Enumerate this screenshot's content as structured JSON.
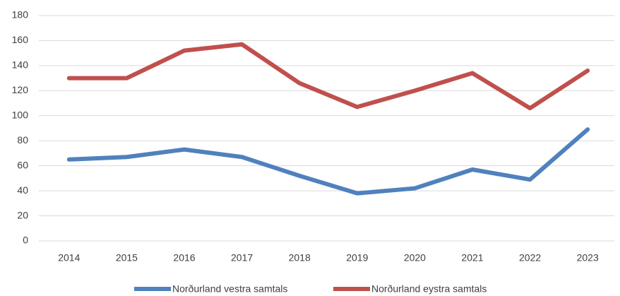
{
  "chart_data": {
    "type": "line",
    "categories": [
      "2014",
      "2015",
      "2016",
      "2017",
      "2018",
      "2019",
      "2020",
      "2021",
      "2022",
      "2023"
    ],
    "series": [
      {
        "name": "Norðurland vestra samtals",
        "color": "#4f81bd",
        "values": [
          65,
          67,
          73,
          67,
          52,
          38,
          42,
          57,
          49,
          89
        ]
      },
      {
        "name": "Norðurland eystra samtals",
        "color": "#c0504d",
        "values": [
          130,
          130,
          152,
          157,
          126,
          107,
          120,
          134,
          106,
          136
        ]
      }
    ],
    "ylim": [
      0,
      180
    ],
    "yticks": [
      0,
      20,
      40,
      60,
      80,
      100,
      120,
      140,
      160,
      180
    ],
    "grid": true,
    "legend": "bottom"
  }
}
